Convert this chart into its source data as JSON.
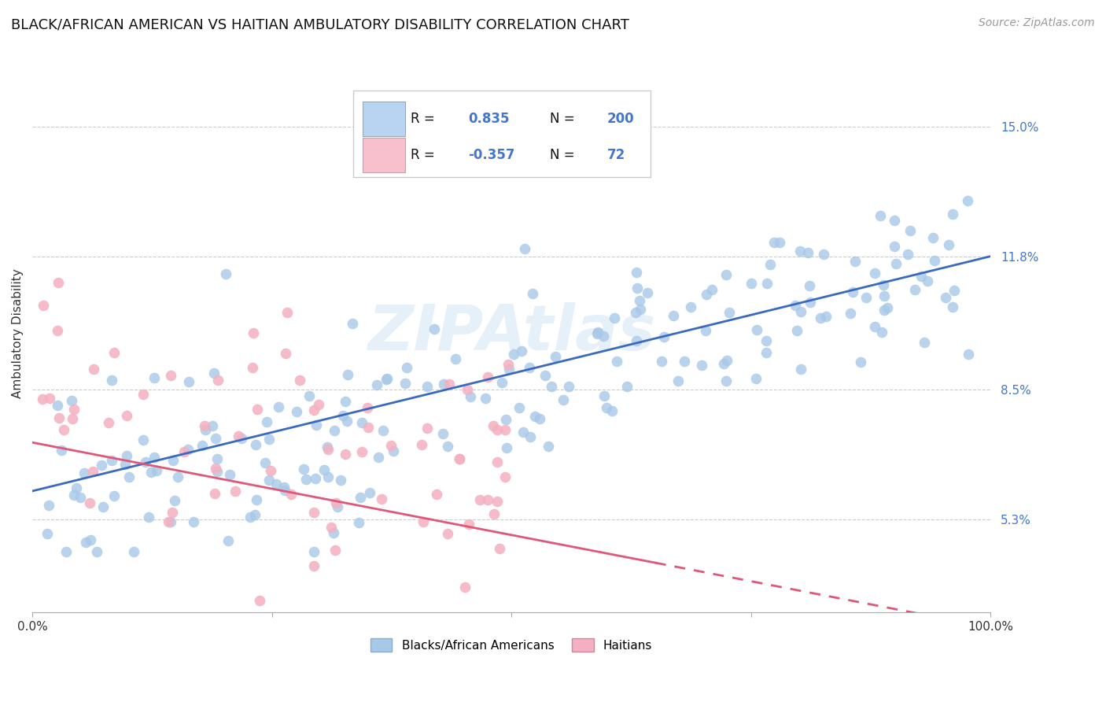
{
  "title": "BLACK/AFRICAN AMERICAN VS HAITIAN AMBULATORY DISABILITY CORRELATION CHART",
  "source": "Source: ZipAtlas.com",
  "ylabel": "Ambulatory Disability",
  "ytick_labels": [
    "5.3%",
    "8.5%",
    "11.8%",
    "15.0%"
  ],
  "ytick_values": [
    0.053,
    0.085,
    0.118,
    0.15
  ],
  "ylim": [
    0.03,
    0.168
  ],
  "xlim": [
    0.0,
    1.0
  ],
  "blue_R": 0.835,
  "blue_N": 200,
  "pink_R": -0.357,
  "pink_N": 72,
  "blue_color": "#a8c8e8",
  "pink_color": "#f4b0c0",
  "blue_line_color": "#3a6abf",
  "pink_line_color": "#e05878",
  "legend_label_blue": "Blacks/African Americans",
  "legend_label_pink": "Haitians",
  "title_fontsize": 13,
  "source_fontsize": 10,
  "label_fontsize": 11,
  "tick_fontsize": 11,
  "watermark_text": "ZIPAtlas",
  "background_color": "#ffffff",
  "grid_color": "#cccccc",
  "blue_legend_box": "#b8d4f0",
  "pink_legend_box": "#f8c0cc",
  "legend_R_blue": "0.835",
  "legend_R_pink": "-0.357",
  "legend_N_blue": "200",
  "legend_N_pink": "72"
}
